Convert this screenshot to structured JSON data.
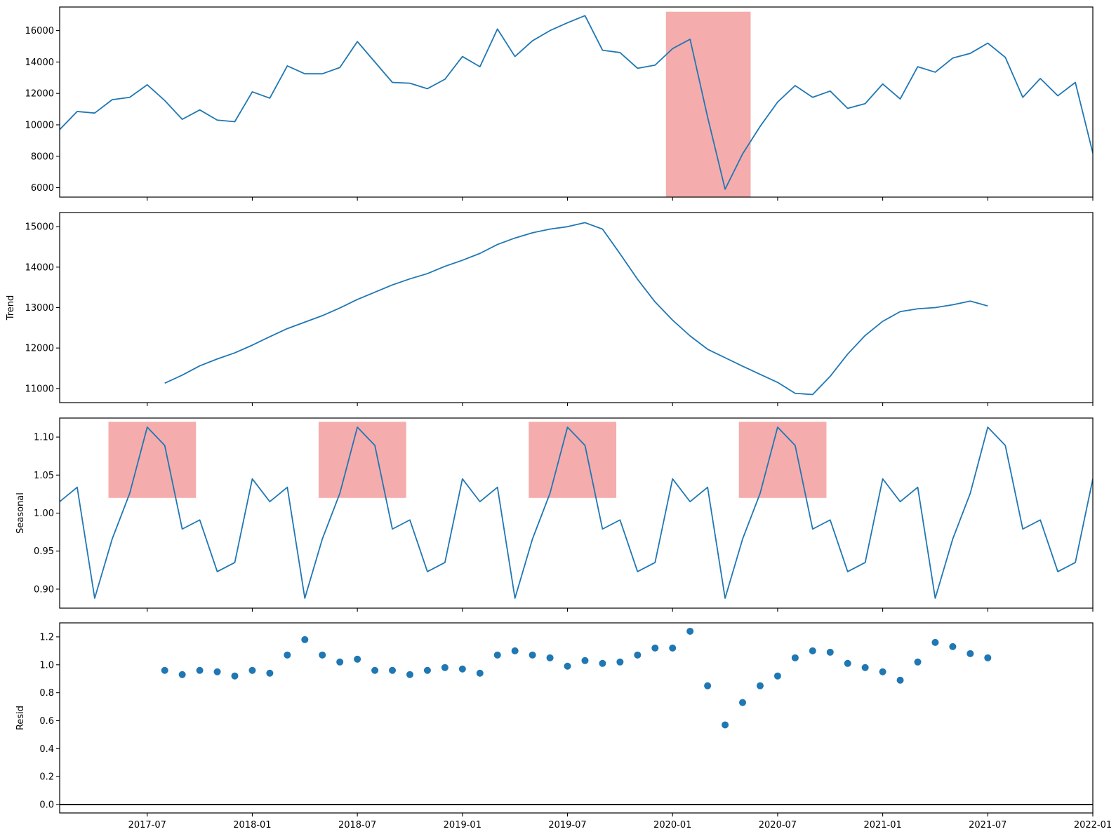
{
  "chart_data": {
    "type": "line",
    "description_free": true,
    "x_dates": [
      "2017-02",
      "2017-03",
      "2017-04",
      "2017-05",
      "2017-06",
      "2017-07",
      "2017-08",
      "2017-09",
      "2017-10",
      "2017-11",
      "2017-12",
      "2018-01",
      "2018-02",
      "2018-03",
      "2018-04",
      "2018-05",
      "2018-06",
      "2018-07",
      "2018-08",
      "2018-09",
      "2018-10",
      "2018-11",
      "2018-12",
      "2019-01",
      "2019-02",
      "2019-03",
      "2019-04",
      "2019-05",
      "2019-06",
      "2019-07",
      "2019-08",
      "2019-09",
      "2019-10",
      "2019-11",
      "2019-12",
      "2020-01",
      "2020-02",
      "2020-03",
      "2020-04",
      "2020-05",
      "2020-06",
      "2020-07",
      "2020-08",
      "2020-09",
      "2020-10",
      "2020-11",
      "2020-12",
      "2021-01",
      "2021-02",
      "2021-03",
      "2021-04",
      "2021-05",
      "2021-06",
      "2021-07",
      "2021-08",
      "2021-09",
      "2021-10",
      "2021-11",
      "2021-12",
      "2022-01"
    ],
    "xlim": [
      "2017-02",
      "2022-01"
    ],
    "x_ticks": [
      "2017-07",
      "2018-01",
      "2018-07",
      "2019-01",
      "2019-07",
      "2020-01",
      "2020-07",
      "2021-01",
      "2021-07",
      "2022-01"
    ],
    "series_color": "#1f77b4",
    "highlight_color": "#f08080",
    "panels": [
      {
        "id": "observed",
        "ylabel": "",
        "kind": "line",
        "ylim": [
          5400,
          17500
        ],
        "y_ticks": [
          6000,
          8000,
          10000,
          12000,
          14000,
          16000
        ],
        "values": [
          9700,
          10850,
          10750,
          11600,
          11750,
          12550,
          11550,
          10350,
          10950,
          10300,
          10200,
          12100,
          11700,
          13750,
          13250,
          13250,
          13650,
          15300,
          14000,
          12700,
          12650,
          12300,
          12900,
          14350,
          13700,
          16100,
          14350,
          15350,
          16000,
          16500,
          16950,
          14750,
          14600,
          13600,
          13800,
          14850,
          15450,
          10500,
          5900,
          8150,
          9900,
          11450,
          12500,
          11750,
          12150,
          11050,
          11350,
          12600,
          11650,
          13700,
          13350,
          14250,
          14550,
          15200,
          14300,
          11750,
          12950,
          11850,
          12700,
          8200
        ],
        "highlights": [
          {
            "x_start": "2019-12-20",
            "x_end": "2020-05-15",
            "y_start": 5400,
            "y_end": 17200
          }
        ]
      },
      {
        "id": "trend",
        "ylabel": "Trend",
        "kind": "line",
        "ylim": [
          10650,
          15350
        ],
        "y_ticks": [
          11000,
          12000,
          13000,
          14000,
          15000
        ],
        "values": [
          null,
          null,
          null,
          null,
          null,
          null,
          11130,
          11330,
          11560,
          11730,
          11880,
          12070,
          12280,
          12480,
          12640,
          12800,
          12990,
          13200,
          13380,
          13560,
          13710,
          13840,
          14020,
          14170,
          14340,
          14560,
          14720,
          14850,
          14940,
          15000,
          15100,
          14940,
          14330,
          13700,
          13140,
          12690,
          12300,
          11970,
          11760,
          11550,
          11350,
          11150,
          10880,
          10850,
          11300,
          11850,
          12310,
          12660,
          12900,
          12970,
          13000,
          13070,
          13160,
          13040,
          null,
          null,
          null,
          null,
          null,
          null
        ],
        "highlights": []
      },
      {
        "id": "seasonal",
        "ylabel": "Seasonal",
        "kind": "line",
        "ylim": [
          0.875,
          1.125
        ],
        "y_ticks": [
          0.9,
          0.95,
          1.0,
          1.05,
          1.1
        ],
        "y_tick_labels": [
          "0.90",
          "0.95",
          "1.00",
          "1.05",
          "1.10"
        ],
        "values": [
          1.015,
          1.034,
          0.888,
          0.966,
          1.026,
          1.113,
          1.089,
          0.979,
          0.991,
          0.923,
          0.935,
          1.045,
          1.015,
          1.034,
          0.888,
          0.966,
          1.026,
          1.113,
          1.089,
          0.979,
          0.991,
          0.923,
          0.935,
          1.045,
          1.015,
          1.034,
          0.888,
          0.966,
          1.026,
          1.113,
          1.089,
          0.979,
          0.991,
          0.923,
          0.935,
          1.045,
          1.015,
          1.034,
          0.888,
          0.966,
          1.026,
          1.113,
          1.089,
          0.979,
          0.991,
          0.923,
          0.935,
          1.045,
          1.015,
          1.034,
          0.888,
          0.966,
          1.026,
          1.113,
          1.089,
          0.979,
          0.991,
          0.923,
          0.935,
          1.045
        ],
        "highlights": [
          {
            "x_start": "2017-04-25",
            "x_end": "2017-09-25",
            "y_start": 1.02,
            "y_end": 1.12
          },
          {
            "x_start": "2018-04-25",
            "x_end": "2018-09-25",
            "y_start": 1.02,
            "y_end": 1.12
          },
          {
            "x_start": "2019-04-25",
            "x_end": "2019-09-25",
            "y_start": 1.02,
            "y_end": 1.12
          },
          {
            "x_start": "2020-04-25",
            "x_end": "2020-09-25",
            "y_start": 1.02,
            "y_end": 1.12
          }
        ]
      },
      {
        "id": "resid",
        "ylabel": "Resid",
        "kind": "scatter",
        "ylim": [
          -0.06,
          1.3
        ],
        "y_ticks": [
          0.0,
          0.2,
          0.4,
          0.6,
          0.8,
          1.0,
          1.2
        ],
        "y_tick_labels": [
          "0.0",
          "0.2",
          "0.4",
          "0.6",
          "0.8",
          "1.0",
          "1.2"
        ],
        "baseline": 0.0,
        "values": [
          null,
          null,
          null,
          null,
          null,
          null,
          0.96,
          0.93,
          0.96,
          0.95,
          0.92,
          0.96,
          0.94,
          1.07,
          1.18,
          1.07,
          1.02,
          1.04,
          0.96,
          0.96,
          0.93,
          0.96,
          0.98,
          0.97,
          0.94,
          1.07,
          1.1,
          1.07,
          1.05,
          0.99,
          1.03,
          1.01,
          1.02,
          1.07,
          1.12,
          1.12,
          1.24,
          0.85,
          0.57,
          0.73,
          0.85,
          0.92,
          1.05,
          1.1,
          1.09,
          1.01,
          0.98,
          0.95,
          0.89,
          1.02,
          1.16,
          1.13,
          1.08,
          1.05,
          null,
          null,
          null,
          null,
          null,
          null
        ],
        "highlights": []
      }
    ]
  }
}
